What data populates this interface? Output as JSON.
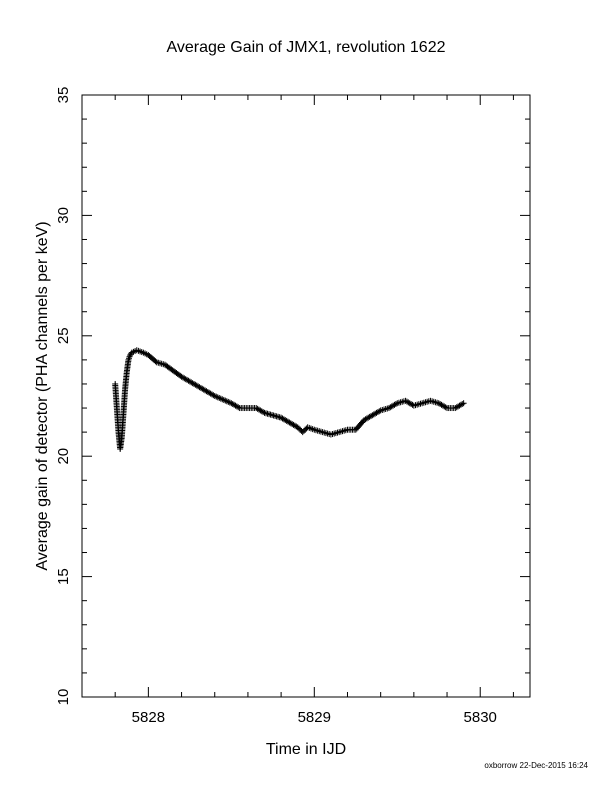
{
  "chart_data": {
    "type": "scatter",
    "title": "Average Gain of JMX1, revolution 1622",
    "xlabel": "Time in IJD",
    "ylabel": "Average gain of detector (PHA channels per keV)",
    "xlim": [
      5827.6,
      5830.3
    ],
    "ylim": [
      10,
      35
    ],
    "x_ticks": [
      5828,
      5829,
      5830
    ],
    "y_ticks": [
      10,
      15,
      20,
      25,
      30,
      35
    ],
    "grid": false,
    "marker": "+",
    "series": [
      {
        "x": [
          5827.8,
          5827.81,
          5827.82,
          5827.83,
          5827.84,
          5827.85,
          5827.86,
          5827.87,
          5827.88,
          5827.89,
          5827.9,
          5827.93,
          5827.97,
          5828.0,
          5828.05,
          5828.1,
          5828.2,
          5828.3,
          5828.4,
          5828.5,
          5828.55,
          5828.6,
          5828.65,
          5828.7,
          5828.8,
          5828.9,
          5828.93,
          5828.96,
          5829.0,
          5829.05,
          5829.1,
          5829.15,
          5829.2,
          5829.25,
          5829.3,
          5829.4,
          5829.45,
          5829.5,
          5829.55,
          5829.6,
          5829.65,
          5829.7,
          5829.75,
          5829.8,
          5829.85,
          5829.9
        ],
        "y": [
          23.0,
          22.0,
          21.0,
          20.3,
          20.8,
          21.8,
          22.8,
          23.5,
          24.0,
          24.2,
          24.3,
          24.4,
          24.3,
          24.2,
          23.9,
          23.8,
          23.3,
          22.9,
          22.5,
          22.2,
          22.0,
          22.0,
          22.0,
          21.8,
          21.6,
          21.2,
          21.0,
          21.2,
          21.1,
          21.0,
          20.9,
          21.0,
          21.1,
          21.1,
          21.5,
          21.9,
          22.0,
          22.2,
          22.3,
          22.1,
          22.2,
          22.3,
          22.2,
          22.0,
          22.0,
          22.2
        ]
      }
    ]
  },
  "footer": "oxborrow 22-Dec-2015 16:24"
}
